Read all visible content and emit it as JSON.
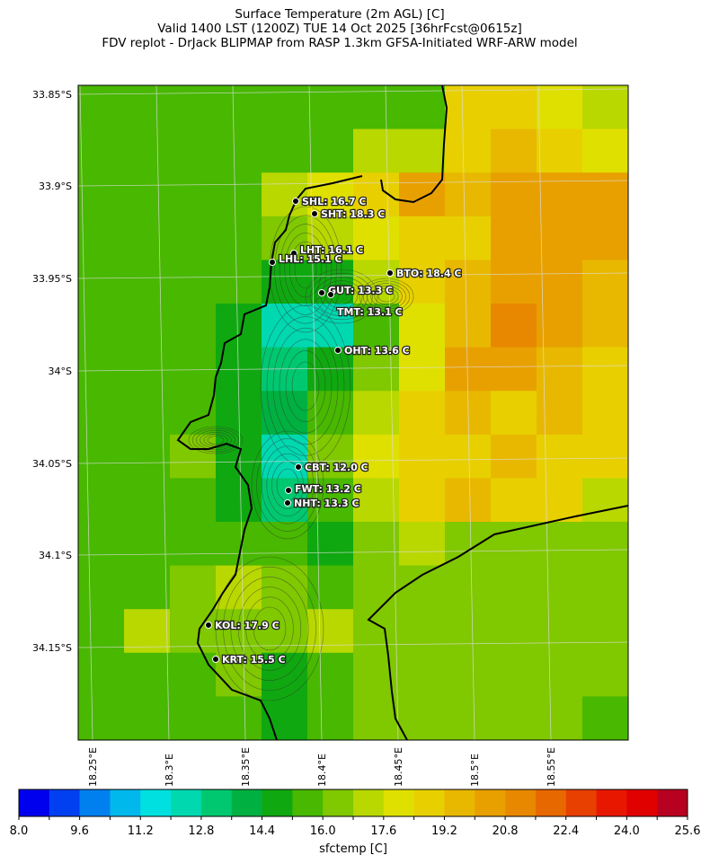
{
  "title": {
    "line1": "Surface Temperature (2m AGL) [C]",
    "line2": "Valid 1400 LST (1200Z) TUE 14 Oct 2025 [36hrFcst@0615z]",
    "line3": "FDV replot - DrJack BLIPMAP from RASP 1.3km GFSA-Initiated WRF-ARW model"
  },
  "map": {
    "lat_labels": [
      "33.85°S",
      "33.9°S",
      "33.95°S",
      "34°S",
      "34.05°S",
      "34.1°S",
      "34.15°S"
    ],
    "lon_labels": [
      "18.25°E",
      "18.3°E",
      "18.35°E",
      "18.4°E",
      "18.45°E",
      "18.5°E",
      "18.55°E"
    ],
    "temperature_grid_approx": [
      [
        15.5,
        15.5,
        15.5,
        15.5,
        15.5,
        15.5,
        15.5,
        15.5,
        18.5,
        18.5,
        18.0,
        17.0
      ],
      [
        15.5,
        15.5,
        15.5,
        15.5,
        15.5,
        15.5,
        17.0,
        17.5,
        19.0,
        19.5,
        19.0,
        18.0
      ],
      [
        15.5,
        15.5,
        15.5,
        15.5,
        17.0,
        18.0,
        18.5,
        20.0,
        19.5,
        20.0,
        20.0,
        20.0
      ],
      [
        15.5,
        15.5,
        15.5,
        15.5,
        16.5,
        17.5,
        18.0,
        19.0,
        18.5,
        20.0,
        20.5,
        20.0
      ],
      [
        15.5,
        15.5,
        15.5,
        15.5,
        14.5,
        15.0,
        17.5,
        18.5,
        19.5,
        20.5,
        20.0,
        19.5
      ],
      [
        15.5,
        15.5,
        15.5,
        15.0,
        12.5,
        12.5,
        15.5,
        18.0,
        19.5,
        21.0,
        20.5,
        19.5
      ],
      [
        15.5,
        15.5,
        15.5,
        14.5,
        13.0,
        14.5,
        16.0,
        18.0,
        20.0,
        20.5,
        19.5,
        19.0
      ],
      [
        15.5,
        15.5,
        15.5,
        15.0,
        14.0,
        15.5,
        17.0,
        18.5,
        19.5,
        19.0,
        19.5,
        19.0
      ],
      [
        15.5,
        15.5,
        16.0,
        15.0,
        12.5,
        16.0,
        18.0,
        18.5,
        19.0,
        19.5,
        19.0,
        19.0
      ],
      [
        15.5,
        15.5,
        15.5,
        15.0,
        13.0,
        15.5,
        17.5,
        18.5,
        19.5,
        19.0,
        18.5,
        17.0
      ],
      [
        15.5,
        15.5,
        15.5,
        15.5,
        15.5,
        15.0,
        16.5,
        17.0,
        16.5,
        16.5,
        16.5,
        16.0
      ],
      [
        15.5,
        15.5,
        16.5,
        17.0,
        16.0,
        15.5,
        16.5,
        16.5,
        16.5,
        16.5,
        16.5,
        16.5
      ],
      [
        15.5,
        17.0,
        16.0,
        16.0,
        16.5,
        17.0,
        16.5,
        16.5,
        16.5,
        16.5,
        16.5,
        16.5
      ],
      [
        15.5,
        15.5,
        15.5,
        16.0,
        15.0,
        15.5,
        16.5,
        16.5,
        16.5,
        16.5,
        16.5,
        16.5
      ],
      [
        15.5,
        15.5,
        15.5,
        15.5,
        15.0,
        15.5,
        16.5,
        16.5,
        16.5,
        16.5,
        16.5,
        15.5
      ]
    ],
    "stations": [
      {
        "label": "SHL: 16.7 C"
      },
      {
        "label": "SHT: 18.3 C"
      },
      {
        "label": "LHT: 16.1 C"
      },
      {
        "label": "LHL: 15.1 C"
      },
      {
        "label": "BTO: 18.4 C"
      },
      {
        "label": "GUT: 13.3 C"
      },
      {
        "label": "TMT: 13.1 C"
      },
      {
        "label": "OHT: 13.6 C"
      },
      {
        "label": "CBT: 12.0 C"
      },
      {
        "label": "FWT: 13.2 C"
      },
      {
        "label": "NHT: 13.3 C"
      },
      {
        "label": "KOL: 17.9 C"
      },
      {
        "label": "KRT: 15.5 C"
      }
    ]
  },
  "colorbar": {
    "label": "sfctemp [C]",
    "min": 8.0,
    "max": 25.6,
    "step": 0.8,
    "tick_labels": [
      "8.0",
      "9.6",
      "11.2",
      "12.8",
      "14.4",
      "16.0",
      "17.6",
      "19.2",
      "20.8",
      "22.4",
      "24.0",
      "25.6"
    ],
    "colors": [
      "#0000ee",
      "#0040f0",
      "#0080ee",
      "#00b8ec",
      "#00e0e0",
      "#00d8b0",
      "#00c870",
      "#00b040",
      "#10a810",
      "#48b800",
      "#80c800",
      "#b8d800",
      "#e0e000",
      "#e8d000",
      "#e8b800",
      "#e8a000",
      "#e88800",
      "#e86800",
      "#e84000",
      "#e81800",
      "#e00000",
      "#b80020"
    ]
  }
}
